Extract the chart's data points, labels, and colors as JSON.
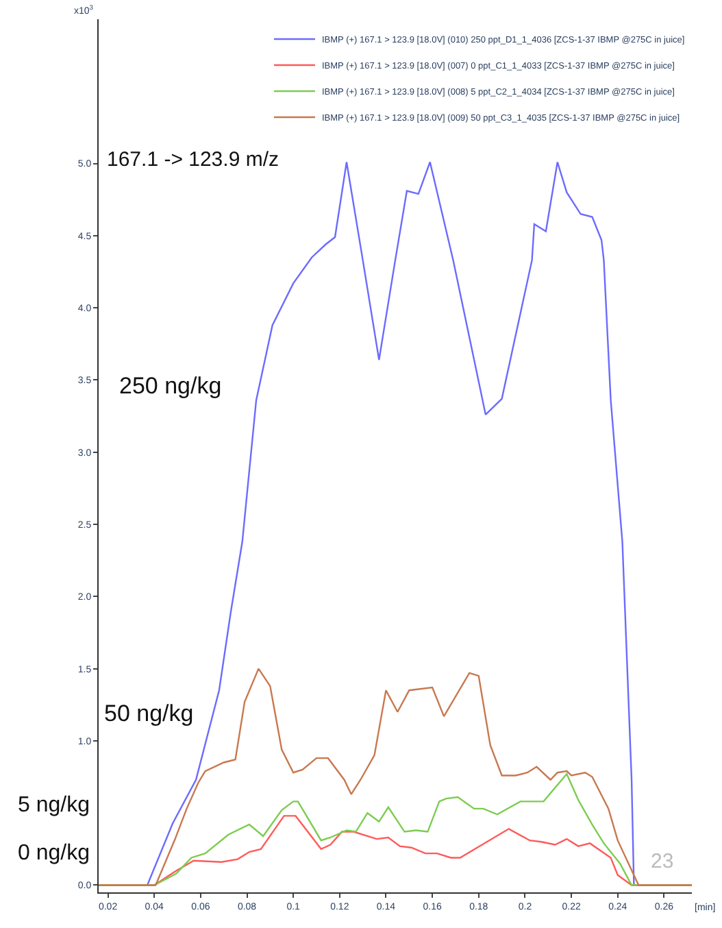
{
  "chart_data": {
    "type": "line",
    "title": "167.1 -> 123.9 m/z",
    "xlabel": "[min]",
    "ylabel": "x10$^{3}$",
    "xlim": [
      0.016,
      0.272
    ],
    "xticks": [
      0.02,
      0.04,
      0.06,
      0.08,
      {
        "value": 0.1,
        "label": "0.1"
      },
      0.12,
      0.14,
      0.16,
      0.18,
      {
        "value": 0.2,
        "label": "0.2"
      },
      0.22,
      0.24,
      0.26
    ],
    "ylim": [
      -0.05,
      6.0
    ],
    "yticks": [
      {
        "value": 0,
        "label": "0.0"
      },
      {
        "value": 1,
        "label": "1.0"
      },
      1.5,
      {
        "value": 2,
        "label": "2.0"
      },
      2.5,
      {
        "value": 3,
        "label": "3.0"
      },
      3.5,
      {
        "value": 4,
        "label": "4.0"
      },
      4.5,
      {
        "value": 5,
        "label": "5.0"
      }
    ],
    "grid": false,
    "legend": "top right",
    "marker": "none",
    "line_style": "solid",
    "series": [
      {
        "name": "IBMP (+) 167.1 > 123.9 [18.0V] (010) 250 ppt_D1_1_4036 [ZCS-1-37 IBMP @275C in juice]",
        "color": "#6b6bff",
        "x": [
          0.016,
          0.037,
          0.048,
          0.058,
          0.068,
          0.073,
          0.078,
          0.084,
          0.091,
          0.1,
          0.108,
          0.114,
          0.118,
          0.123,
          0.13,
          0.137,
          0.144,
          0.149,
          0.154,
          0.159,
          0.169,
          0.183,
          0.19,
          0.203,
          0.204,
          0.209,
          0.214,
          0.218,
          0.224,
          0.229,
          0.233,
          0.234,
          0.237,
          0.242,
          0.246,
          0.247,
          0.272
        ],
        "values": [
          0,
          0,
          0.43,
          0.73,
          1.35,
          1.89,
          2.38,
          3.36,
          3.88,
          4.17,
          4.35,
          4.44,
          4.49,
          5.01,
          4.33,
          3.64,
          4.33,
          4.81,
          4.79,
          5.01,
          4.33,
          3.26,
          3.37,
          4.33,
          4.58,
          4.53,
          5.01,
          4.8,
          4.65,
          4.63,
          4.47,
          4.33,
          3.36,
          2.38,
          0.73,
          0,
          0
        ]
      },
      {
        "name": "IBMP (+) 167.1 > 123.9 [18.0V] (007) 0 ppt_C1_1_4033 [ZCS-1-37 IBMP @275C in juice]",
        "color": "#ff5a5a",
        "x": [
          0.016,
          0.04,
          0.0495,
          0.057,
          0.069,
          0.076,
          0.081,
          0.086,
          0.096,
          0.101,
          0.112,
          0.116,
          0.121,
          0.126,
          0.136,
          0.141,
          0.146,
          0.151,
          0.157,
          0.162,
          0.168,
          0.172,
          0.193,
          0.202,
          0.207,
          0.213,
          0.218,
          0.223,
          0.228,
          0.237,
          0.24,
          0.246,
          0.272
        ],
        "values": [
          0,
          0,
          0.1,
          0.17,
          0.16,
          0.18,
          0.23,
          0.25,
          0.48,
          0.48,
          0.25,
          0.28,
          0.37,
          0.37,
          0.32,
          0.33,
          0.27,
          0.26,
          0.22,
          0.22,
          0.19,
          0.19,
          0.39,
          0.31,
          0.3,
          0.28,
          0.32,
          0.27,
          0.29,
          0.19,
          0.07,
          0,
          0
        ]
      },
      {
        "name": "IBMP (+) 167.1 > 123.9 [18.0V] (008) 5 ppt_C2_1_4034 [ZCS-1-37 IBMP @275C in juice]",
        "color": "#7ccc50",
        "x": [
          0.016,
          0.04,
          0.0495,
          0.056,
          0.062,
          0.072,
          0.081,
          0.087,
          0.095,
          0.1,
          0.102,
          0.112,
          0.116,
          0.123,
          0.127,
          0.132,
          0.137,
          0.141,
          0.148,
          0.153,
          0.158,
          0.163,
          0.166,
          0.171,
          0.178,
          0.182,
          0.188,
          0.198,
          0.203,
          0.208,
          0.218,
          0.223,
          0.229,
          0.234,
          0.241,
          0.246,
          0.272
        ],
        "values": [
          0,
          0,
          0.08,
          0.19,
          0.22,
          0.35,
          0.42,
          0.34,
          0.52,
          0.58,
          0.58,
          0.31,
          0.33,
          0.38,
          0.37,
          0.5,
          0.44,
          0.54,
          0.37,
          0.38,
          0.37,
          0.58,
          0.6,
          0.61,
          0.53,
          0.53,
          0.49,
          0.58,
          0.58,
          0.58,
          0.77,
          0.59,
          0.42,
          0.29,
          0.15,
          0,
          0
        ]
      },
      {
        "name": "IBMP (+) 167.1 > 123.9 [18.0V] (009) 50 ppt_C3_1_4035 [ZCS-1-37 IBMP @275C in juice]",
        "color": "#c8784f",
        "x": [
          0.016,
          0.0406,
          0.049,
          0.054,
          0.059,
          0.062,
          0.07,
          0.075,
          0.079,
          0.085,
          0.09,
          0.095,
          0.1,
          0.104,
          0.11,
          0.115,
          0.122,
          0.125,
          0.129,
          0.135,
          0.14,
          0.145,
          0.15,
          0.16,
          0.165,
          0.176,
          0.18,
          0.185,
          0.19,
          0.196,
          0.201,
          0.205,
          0.211,
          0.214,
          0.218,
          0.22,
          0.226,
          0.229,
          0.236,
          0.24,
          0.249,
          0.272
        ],
        "values": [
          0,
          0,
          0.32,
          0.53,
          0.71,
          0.79,
          0.85,
          0.87,
          1.27,
          1.5,
          1.38,
          0.94,
          0.78,
          0.8,
          0.88,
          0.88,
          0.73,
          0.63,
          0.73,
          0.9,
          1.35,
          1.2,
          1.35,
          1.37,
          1.17,
          1.47,
          1.45,
          0.97,
          0.76,
          0.76,
          0.78,
          0.82,
          0.73,
          0.78,
          0.79,
          0.76,
          0.78,
          0.75,
          0.53,
          0.31,
          0,
          0
        ]
      }
    ],
    "annotations": [
      "250 ng/kg",
      "50 ng/kg",
      "5 ng/kg",
      "0 ng/kg",
      "23"
    ]
  }
}
